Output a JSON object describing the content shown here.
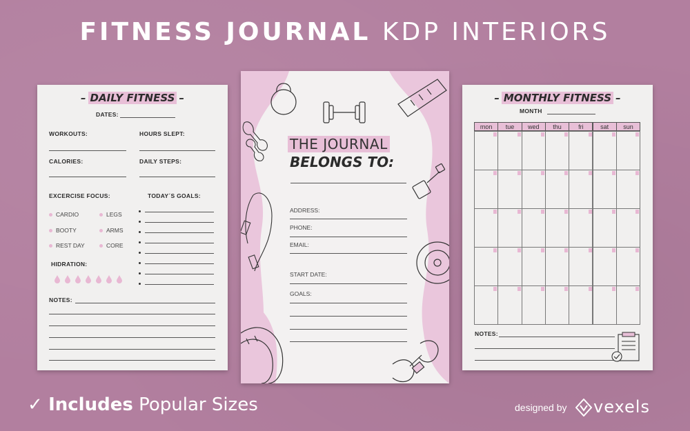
{
  "headline": {
    "bold": "FITNESS JOURNAL",
    "light": "KDP INTERIORS"
  },
  "left_page": {
    "title": "DAILY FITNESS",
    "dates": "DATES:",
    "workouts": "WORKOUTS:",
    "hours_slept": "HOURS SLEPT:",
    "calories": "CALORIES:",
    "daily_steps": "DAILY STEPS:",
    "exercise_focus": "EXCERCISE FOCUS:",
    "todays_goals": "TODAY´S GOALS:",
    "focus_items": [
      "CARDIO",
      "LEGS",
      "BOOTY",
      "ARMS",
      "REST DAY",
      "CORE"
    ],
    "hydration": "HIDRATION:",
    "notes": "NOTES:"
  },
  "mid_page": {
    "title_line1": "THE JOURNAL",
    "title_line2": "BELONGS TO:",
    "address": "ADDRESS:",
    "phone": "PHONE:",
    "email": "EMAIL:",
    "start_date": "START DATE:",
    "goals": "GOALS:"
  },
  "right_page": {
    "title": "MONTHLY FITNESS",
    "month": "MONTH",
    "days": [
      "mon",
      "tue",
      "wed",
      "thu",
      "fri",
      "sat",
      "sun"
    ],
    "notes": "NOTES:"
  },
  "footer": {
    "check": "✓",
    "includes": "Includes",
    "popular": "Popular Sizes",
    "designed_by": "designed by",
    "brand": "vexels"
  },
  "colors": {
    "background": "#b27f9f",
    "accent_pink": "#e8bfd7",
    "paper": "#f1f0ef"
  }
}
